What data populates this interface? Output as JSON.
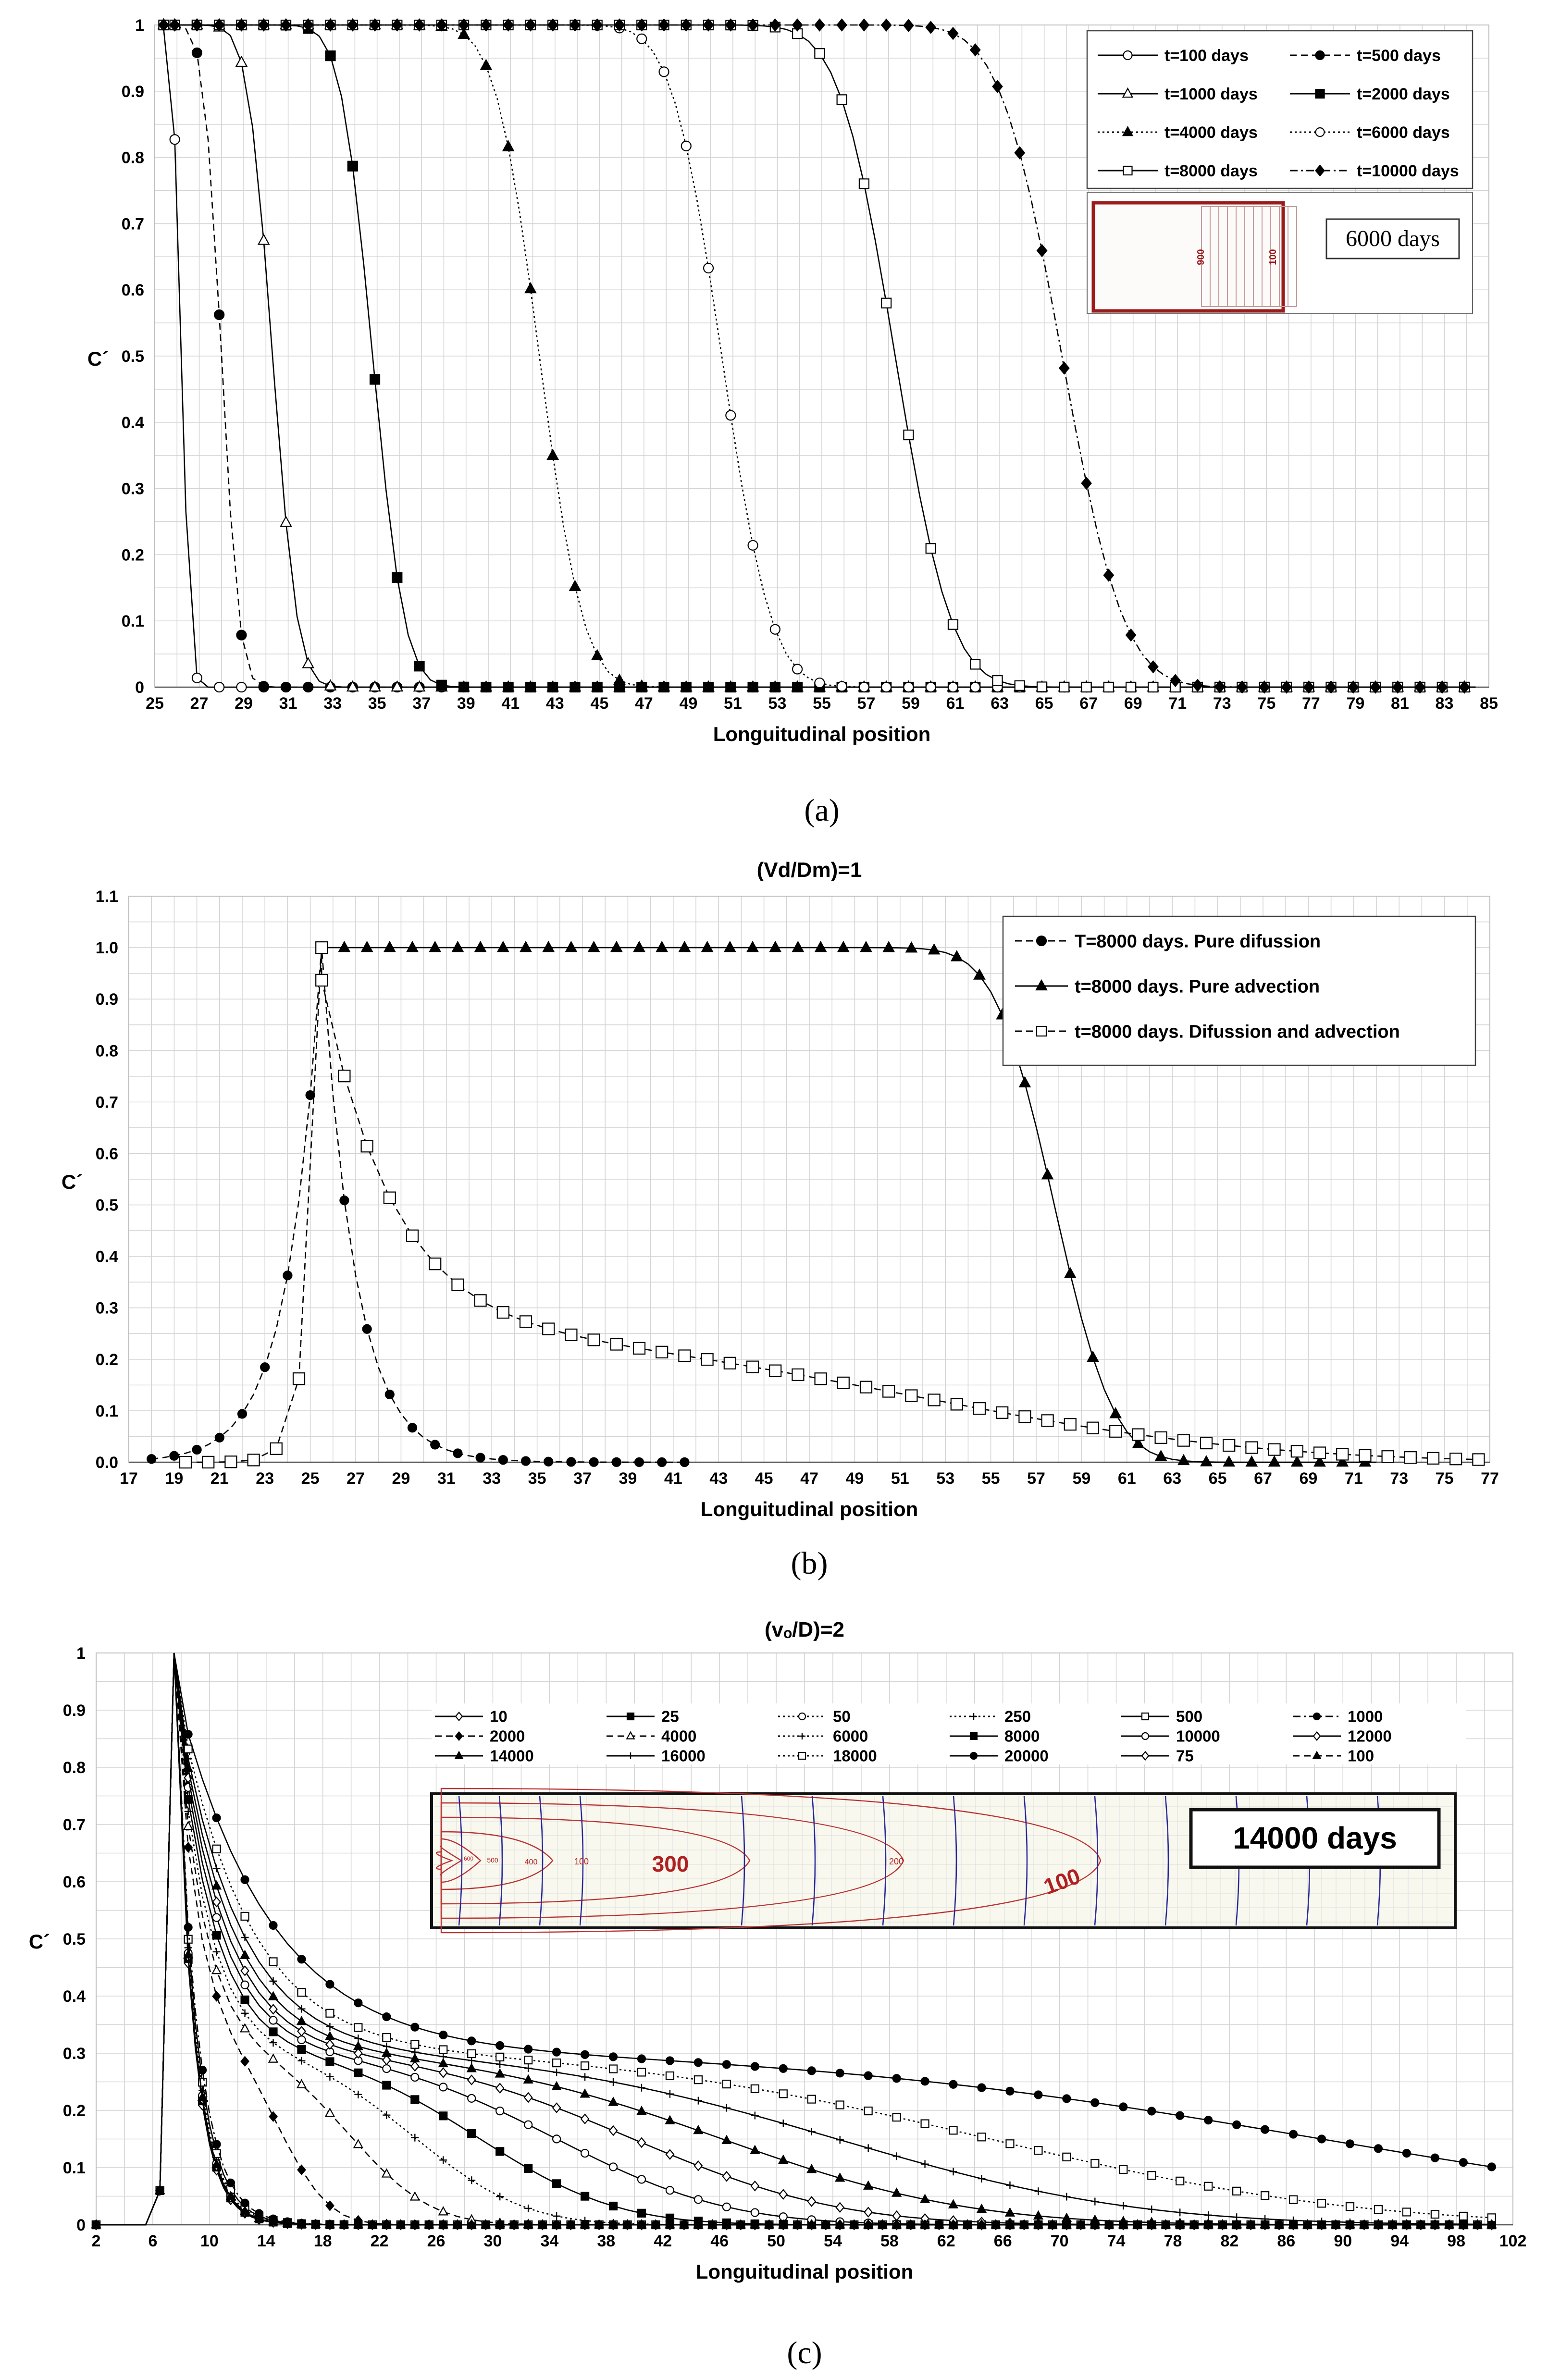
{
  "chart_data": [
    {
      "type": "line",
      "panel": "(a)",
      "caption": "(a)",
      "title": "",
      "xlabel": "Longuitudinal position",
      "ylabel": "C´",
      "xlim": [
        25,
        85
      ],
      "ylim": [
        0,
        1
      ],
      "xticks": [
        25,
        27,
        29,
        31,
        33,
        35,
        37,
        39,
        41,
        43,
        45,
        47,
        49,
        51,
        53,
        55,
        57,
        59,
        61,
        63,
        65,
        67,
        69,
        71,
        73,
        75,
        77,
        79,
        81,
        83,
        85
      ],
      "yticks": [
        0,
        0.1,
        0.2,
        0.3,
        0.4,
        0.5,
        0.6,
        0.7,
        0.8,
        0.9,
        1
      ],
      "ytick_labels": [
        "0",
        "0.1",
        "0.2",
        "0.3",
        "0.4",
        "0.5",
        "0.6",
        "0.7",
        "0.8",
        "0.9",
        "1"
      ],
      "grid": true,
      "legend_position": "top-right",
      "series": [
        {
          "name": "t=100 days",
          "marker": "circle-open",
          "dash": "solid",
          "x0": 26.2,
          "s": 0.45
        },
        {
          "name": "t=500 days",
          "marker": "circle-filled",
          "dash": "dashed",
          "x0": 28.0,
          "s": 0.9
        },
        {
          "name": "t=1000 days",
          "marker": "triangle-open",
          "dash": "solid",
          "x0": 30.3,
          "s": 1.25
        },
        {
          "name": "t=2000 days",
          "marker": "square-filled",
          "dash": "solid",
          "x0": 34.8,
          "s": 1.6
        },
        {
          "name": "t=4000 days",
          "marker": "triangle-filled",
          "dash": "dotted",
          "x0": 42.3,
          "s": 2.2
        },
        {
          "name": "t=6000 days",
          "marker": "circle-open",
          "dash": "dotted",
          "x0": 50.5,
          "s": 2.5
        },
        {
          "name": "t=8000 days",
          "marker": "square-open",
          "dash": "solid",
          "x0": 58.3,
          "s": 2.8
        },
        {
          "name": "t=10000 days",
          "marker": "diamond-filled",
          "dash": "dashdot",
          "x0": 65.8,
          "s": 3.1
        }
      ],
      "inset": {
        "label": "6000 days",
        "contours": [
          "900",
          "100"
        ]
      }
    },
    {
      "type": "line",
      "panel": "(b)",
      "caption": "(b)",
      "title": "(Vd/Dm)=1",
      "xlabel": "Longuitudinal position",
      "ylabel": "C´",
      "xlim": [
        17,
        77
      ],
      "ylim": [
        0,
        1.1
      ],
      "xticks": [
        17,
        19,
        21,
        23,
        25,
        27,
        29,
        31,
        33,
        35,
        37,
        39,
        41,
        43,
        45,
        47,
        49,
        51,
        53,
        55,
        57,
        59,
        61,
        63,
        65,
        67,
        69,
        71,
        73,
        75,
        77
      ],
      "yticks": [
        0,
        0.1,
        0.2,
        0.3,
        0.4,
        0.5,
        0.6,
        0.7,
        0.8,
        0.9,
        1.0,
        1.1
      ],
      "ytick_labels": [
        "0.0",
        "0.1",
        "0.2",
        "0.3",
        "0.4",
        "0.5",
        "0.6",
        "0.7",
        "0.8",
        "0.9",
        "1.0",
        "1.1"
      ],
      "grid": true,
      "legend_position": "top-right",
      "series": [
        {
          "name": "T=8000 days. Pure difussion",
          "marker": "circle-filled",
          "dash": "dashed",
          "x_range": [
            18,
            41.5
          ],
          "peak_x": 25.5,
          "decay": 1.48
        },
        {
          "name": "t=8000 days. Pure advection",
          "marker": "triangle-filled",
          "dash": "solid",
          "x_range": [
            25.5,
            72
          ],
          "x0": 57.8,
          "s": 2.9
        },
        {
          "name": "t=8000 days. Difussion and advection",
          "marker": "square-open",
          "dash": "dashed",
          "x_range": [
            19.5,
            76.5
          ],
          "peak_x": 25.5,
          "left_decay": 0.55
        }
      ]
    },
    {
      "type": "line",
      "panel": "(c)",
      "caption": "(c)",
      "title": "(vₒ/D)=2",
      "xlabel": "Longuitudinal position",
      "ylabel": "C´",
      "xlim": [
        2,
        102
      ],
      "ylim": [
        0,
        1
      ],
      "xticks": [
        2,
        6,
        10,
        14,
        18,
        22,
        26,
        30,
        34,
        38,
        42,
        46,
        50,
        54,
        58,
        62,
        66,
        70,
        74,
        78,
        82,
        86,
        90,
        94,
        98,
        102
      ],
      "yticks": [
        0,
        0.1,
        0.2,
        0.3,
        0.4,
        0.5,
        0.6,
        0.7,
        0.8,
        0.9,
        1
      ],
      "ytick_labels": [
        "0",
        "0.1",
        "0.2",
        "0.3",
        "0.4",
        "0.5",
        "0.6",
        "0.7",
        "0.8",
        "0.9",
        "1"
      ],
      "grid": true,
      "legend_position": "top",
      "series": [
        {
          "name": "10",
          "marker": "diamond-open",
          "dash": "solid",
          "reach": 1.3
        },
        {
          "name": "25",
          "marker": "square-filled",
          "dash": "solid",
          "reach": 1.8
        },
        {
          "name": "50",
          "marker": "circle-open",
          "dash": "dotted",
          "reach": 2.4
        },
        {
          "name": "250",
          "marker": "plus",
          "dash": "dotted",
          "reach": 3.0
        },
        {
          "name": "500",
          "marker": "square-open",
          "dash": "solid",
          "reach": 4.0
        },
        {
          "name": "1000",
          "marker": "circle-filled",
          "dash": "dashdot",
          "reach": 5.5
        },
        {
          "name": "2000",
          "marker": "diamond-filled",
          "dash": "dashed",
          "reach": 8.5
        },
        {
          "name": "4000",
          "marker": "triangle-open",
          "dash": "dashed",
          "reach": 14
        },
        {
          "name": "6000",
          "marker": "plus",
          "dash": "dotted",
          "reach": 19
        },
        {
          "name": "8000",
          "marker": "square-filled",
          "dash": "solid",
          "reach": 24
        },
        {
          "name": "10000",
          "marker": "circle-open",
          "dash": "solid",
          "reach": 30
        },
        {
          "name": "12000",
          "marker": "diamond-open",
          "dash": "solid",
          "reach": 36
        },
        {
          "name": "14000",
          "marker": "triangle-filled",
          "dash": "solid",
          "reach": 43
        },
        {
          "name": "16000",
          "marker": "plus",
          "dash": "solid",
          "reach": 52
        },
        {
          "name": "18000",
          "marker": "square-open",
          "dash": "dotted",
          "reach": 64
        },
        {
          "name": "20000",
          "marker": "circle-filled",
          "dash": "solid",
          "reach": 90
        },
        {
          "name": "75",
          "marker": "diamond-open",
          "dash": "solid",
          "reach": 2.0
        },
        {
          "name": "100",
          "marker": "triangle-filled",
          "dash": "dashed",
          "reach": 2.2
        }
      ],
      "inset": {
        "label": "14000 days",
        "contours": [
          "300",
          "100",
          "200",
          "400",
          "500",
          "600"
        ]
      }
    }
  ]
}
